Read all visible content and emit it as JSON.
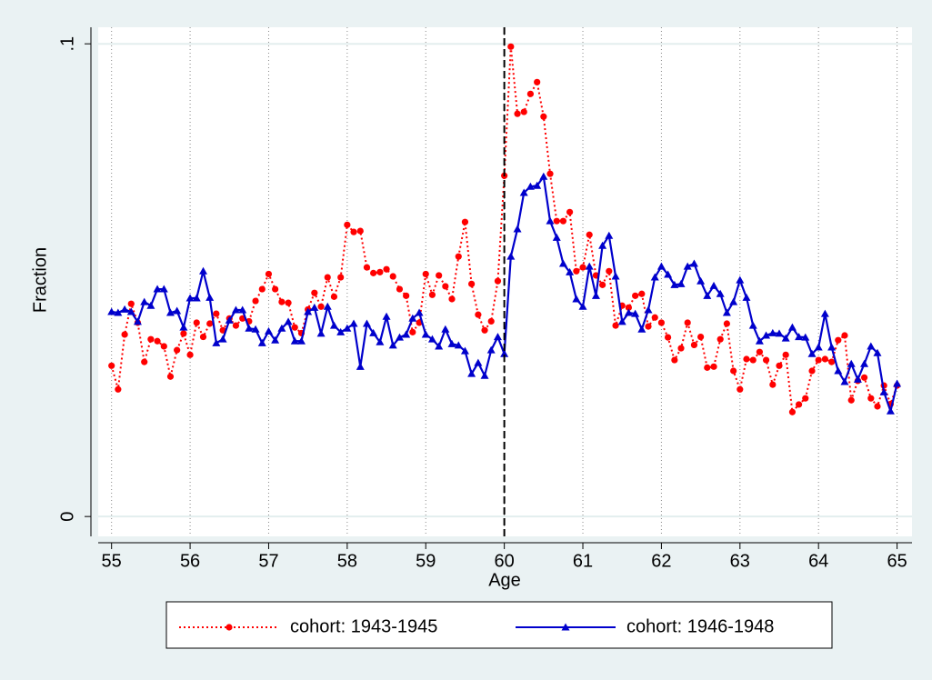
{
  "chart_data": {
    "type": "line",
    "x_label": "Age",
    "y_label": "Fraction",
    "x": [
      55,
      55.083,
      55.167,
      55.25,
      55.333,
      55.417,
      55.5,
      55.583,
      55.667,
      55.75,
      55.833,
      55.917,
      56,
      56.083,
      56.167,
      56.25,
      56.333,
      56.417,
      56.5,
      56.583,
      56.667,
      56.75,
      56.833,
      56.917,
      57,
      57.083,
      57.167,
      57.25,
      57.333,
      57.417,
      57.5,
      57.583,
      57.667,
      57.75,
      57.833,
      57.917,
      58,
      58.083,
      58.167,
      58.25,
      58.333,
      58.417,
      58.5,
      58.583,
      58.667,
      58.75,
      58.833,
      58.917,
      59,
      59.083,
      59.167,
      59.25,
      59.333,
      59.417,
      59.5,
      59.583,
      59.667,
      59.75,
      59.833,
      59.917,
      60,
      60.083,
      60.167,
      60.25,
      60.333,
      60.417,
      60.5,
      60.583,
      60.667,
      60.75,
      60.833,
      60.917,
      61,
      61.083,
      61.167,
      61.25,
      61.333,
      61.417,
      61.5,
      61.583,
      61.667,
      61.75,
      61.833,
      61.917,
      62,
      62.083,
      62.167,
      62.25,
      62.333,
      62.417,
      62.5,
      62.583,
      62.667,
      62.75,
      62.833,
      62.917,
      63,
      63.083,
      63.167,
      63.25,
      63.333,
      63.417,
      63.5,
      63.583,
      63.667,
      63.75,
      63.833,
      63.917,
      64,
      64.083,
      64.167,
      64.25,
      64.333,
      64.417,
      64.5,
      64.583,
      64.667,
      64.75,
      64.833,
      64.917,
      65
    ],
    "series": [
      {
        "name": "cohort: 1943-1945",
        "color": "#ff0000",
        "dash": "dot",
        "marker": "circle",
        "values": [
          0.0319,
          0.0269,
          0.0385,
          0.045,
          0.041,
          0.0327,
          0.0375,
          0.0371,
          0.036,
          0.0296,
          0.0352,
          0.0387,
          0.0342,
          0.041,
          0.038,
          0.0408,
          0.0429,
          0.0394,
          0.0419,
          0.0404,
          0.0419,
          0.0413,
          0.0456,
          0.0481,
          0.0513,
          0.0481,
          0.0454,
          0.0452,
          0.04,
          0.0388,
          0.0438,
          0.0473,
          0.0444,
          0.0506,
          0.0465,
          0.0506,
          0.0617,
          0.0602,
          0.0604,
          0.0527,
          0.0515,
          0.0517,
          0.0523,
          0.0508,
          0.0481,
          0.0467,
          0.039,
          0.041,
          0.0513,
          0.0469,
          0.051,
          0.0487,
          0.046,
          0.055,
          0.0623,
          0.0492,
          0.0427,
          0.0394,
          0.0413,
          0.0498,
          0.0721,
          0.0994,
          0.0852,
          0.0856,
          0.0894,
          0.0919,
          0.0846,
          0.0725,
          0.0625,
          0.0625,
          0.0644,
          0.0519,
          0.0527,
          0.0596,
          0.051,
          0.049,
          0.0519,
          0.0404,
          0.0446,
          0.0442,
          0.0467,
          0.0471,
          0.0402,
          0.0421,
          0.041,
          0.0379,
          0.0331,
          0.0356,
          0.041,
          0.0363,
          0.038,
          0.0315,
          0.0317,
          0.0375,
          0.0408,
          0.0308,
          0.0269,
          0.0333,
          0.0331,
          0.0348,
          0.0331,
          0.0279,
          0.0319,
          0.0342,
          0.0221,
          0.0237,
          0.025,
          0.0308,
          0.0331,
          0.0333,
          0.0327,
          0.0373,
          0.0383,
          0.0246,
          0.0287,
          0.0294,
          0.025,
          0.0233,
          0.0277,
          0.0238,
          0.0277
        ]
      },
      {
        "name": "cohort: 1946-1948",
        "color": "#0000cc",
        "dash": "solid",
        "marker": "triangle",
        "values": [
          0.0433,
          0.0431,
          0.0438,
          0.0433,
          0.0412,
          0.0454,
          0.0446,
          0.0481,
          0.0481,
          0.0431,
          0.0435,
          0.04,
          0.0462,
          0.0462,
          0.0519,
          0.0463,
          0.0367,
          0.0375,
          0.0415,
          0.0437,
          0.0437,
          0.0398,
          0.0396,
          0.0367,
          0.0392,
          0.0373,
          0.0398,
          0.0412,
          0.0371,
          0.0371,
          0.0433,
          0.0442,
          0.0387,
          0.0444,
          0.0404,
          0.039,
          0.0398,
          0.0408,
          0.0317,
          0.0408,
          0.0388,
          0.0369,
          0.0423,
          0.0362,
          0.0379,
          0.0385,
          0.0419,
          0.0431,
          0.0385,
          0.0375,
          0.036,
          0.0396,
          0.0365,
          0.0362,
          0.035,
          0.0302,
          0.0325,
          0.0298,
          0.0352,
          0.038,
          0.0344,
          0.055,
          0.0608,
          0.0685,
          0.0698,
          0.07,
          0.0719,
          0.0625,
          0.059,
          0.0535,
          0.0517,
          0.046,
          0.0444,
          0.0529,
          0.0467,
          0.0573,
          0.0594,
          0.0508,
          0.0412,
          0.0431,
          0.0429,
          0.0396,
          0.0437,
          0.0506,
          0.0529,
          0.0512,
          0.049,
          0.0492,
          0.0529,
          0.0535,
          0.0498,
          0.0467,
          0.0488,
          0.0471,
          0.0431,
          0.0454,
          0.05,
          0.0463,
          0.0404,
          0.0371,
          0.0383,
          0.0388,
          0.0387,
          0.0377,
          0.04,
          0.038,
          0.0379,
          0.0344,
          0.0358,
          0.0429,
          0.0358,
          0.0308,
          0.0285,
          0.0323,
          0.029,
          0.0323,
          0.036,
          0.0346,
          0.0263,
          0.0223,
          0.0281
        ]
      }
    ],
    "xlim": [
      54.83,
      65.19
    ],
    "ylim": [
      -0.0042,
      0.1035
    ],
    "xticks": [
      55,
      56,
      57,
      58,
      59,
      60,
      61,
      62,
      63,
      64,
      65
    ],
    "yticks": [
      0,
      {
        "value": 0.1,
        "label": ".1"
      }
    ],
    "xline": 60,
    "grid": true,
    "legend_position": "bottom"
  }
}
